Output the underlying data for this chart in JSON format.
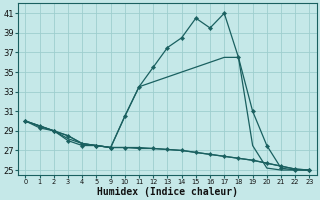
{
  "xlabel": "Humidex (Indice chaleur)",
  "bg_color": "#c5e8e8",
  "grid_color": "#9ecece",
  "line_color": "#1a6060",
  "xlim": [
    -0.5,
    20.5
  ],
  "ylim": [
    24.5,
    42
  ],
  "yticks": [
    25,
    27,
    29,
    31,
    33,
    35,
    37,
    39,
    41
  ],
  "x_positions": [
    0,
    1,
    2,
    3,
    4,
    5,
    6,
    7,
    8,
    9,
    10,
    11,
    12,
    13,
    14,
    15,
    16,
    17,
    18,
    19,
    20
  ],
  "x_labels": [
    "0",
    "1",
    "2",
    "3",
    "4",
    "5",
    "9",
    "10",
    "11",
    "12",
    "13",
    "14",
    "15",
    "16",
    "17",
    "18",
    "19",
    "20",
    "21",
    "22",
    "23"
  ],
  "series": [
    {
      "x": [
        0,
        1,
        2,
        3,
        4,
        5,
        6,
        7,
        8,
        9,
        10,
        11,
        12,
        13,
        14,
        15,
        16,
        17,
        18,
        19,
        20
      ],
      "y": [
        30.0,
        29.5,
        29.0,
        28.5,
        27.7,
        27.5,
        27.3,
        30.5,
        33.5,
        35.5,
        37.5,
        38.5,
        40.5,
        39.5,
        41.0,
        36.5,
        31.0,
        27.5,
        25.2,
        25.0,
        25.0
      ],
      "marker": true
    },
    {
      "x": [
        0,
        1,
        2,
        3,
        4,
        5,
        6,
        7,
        8,
        9,
        10,
        11,
        12,
        13,
        14,
        15,
        16,
        17,
        18,
        19,
        20
      ],
      "y": [
        30.0,
        29.5,
        29.0,
        28.5,
        27.7,
        27.5,
        27.3,
        30.5,
        33.5,
        34.0,
        34.5,
        35.0,
        35.5,
        36.0,
        36.5,
        36.5,
        27.5,
        25.2,
        25.0,
        25.0,
        25.0
      ],
      "marker": false
    },
    {
      "x": [
        0,
        1,
        2,
        3,
        4,
        5,
        6,
        7,
        8,
        9,
        10,
        11,
        12,
        13,
        14,
        15,
        16,
        17,
        18,
        19,
        20
      ],
      "y": [
        30.0,
        29.5,
        29.0,
        28.2,
        27.7,
        27.5,
        27.3,
        27.3,
        27.3,
        27.2,
        27.1,
        27.0,
        26.8,
        26.6,
        26.4,
        26.2,
        26.0,
        25.7,
        25.4,
        25.1,
        25.0
      ],
      "marker": false
    },
    {
      "x": [
        0,
        1,
        2,
        3,
        4,
        5,
        6,
        7,
        8,
        9,
        10,
        11,
        12,
        13,
        14,
        15,
        16,
        17,
        18,
        19,
        20
      ],
      "y": [
        30.0,
        29.3,
        29.0,
        28.0,
        27.5,
        27.5,
        27.3,
        27.3,
        27.2,
        27.2,
        27.1,
        27.0,
        26.8,
        26.6,
        26.4,
        26.2,
        26.0,
        25.7,
        25.4,
        25.1,
        25.0
      ],
      "marker": true
    }
  ]
}
